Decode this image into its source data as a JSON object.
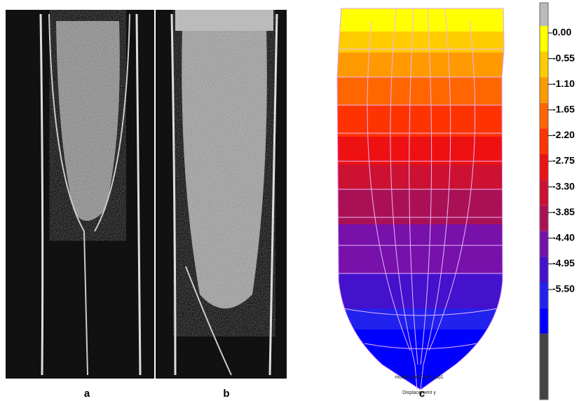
{
  "panels": {
    "a": "a",
    "b": "b",
    "c": "c"
  },
  "fem": {
    "footer": "model teat90mm_job1",
    "quantity": "Displacement y"
  },
  "legend": {
    "labels": [
      "0.00",
      "-0.55",
      "-1.10",
      "-1.65",
      "-2.20",
      "-2.75",
      "-3.30",
      "-3.85",
      "-4.40",
      "-4.95",
      "-5.50"
    ],
    "colors": [
      "#ffff00",
      "#ffcc00",
      "#ff9900",
      "#ff6600",
      "#ff3300",
      "#ee1111",
      "#cc1133",
      "#aa1155",
      "#7711aa",
      "#4411cc",
      "#2222ee",
      "#0000ff"
    ],
    "top_color": "#bbbbbb",
    "bottom_color": "#444444"
  }
}
